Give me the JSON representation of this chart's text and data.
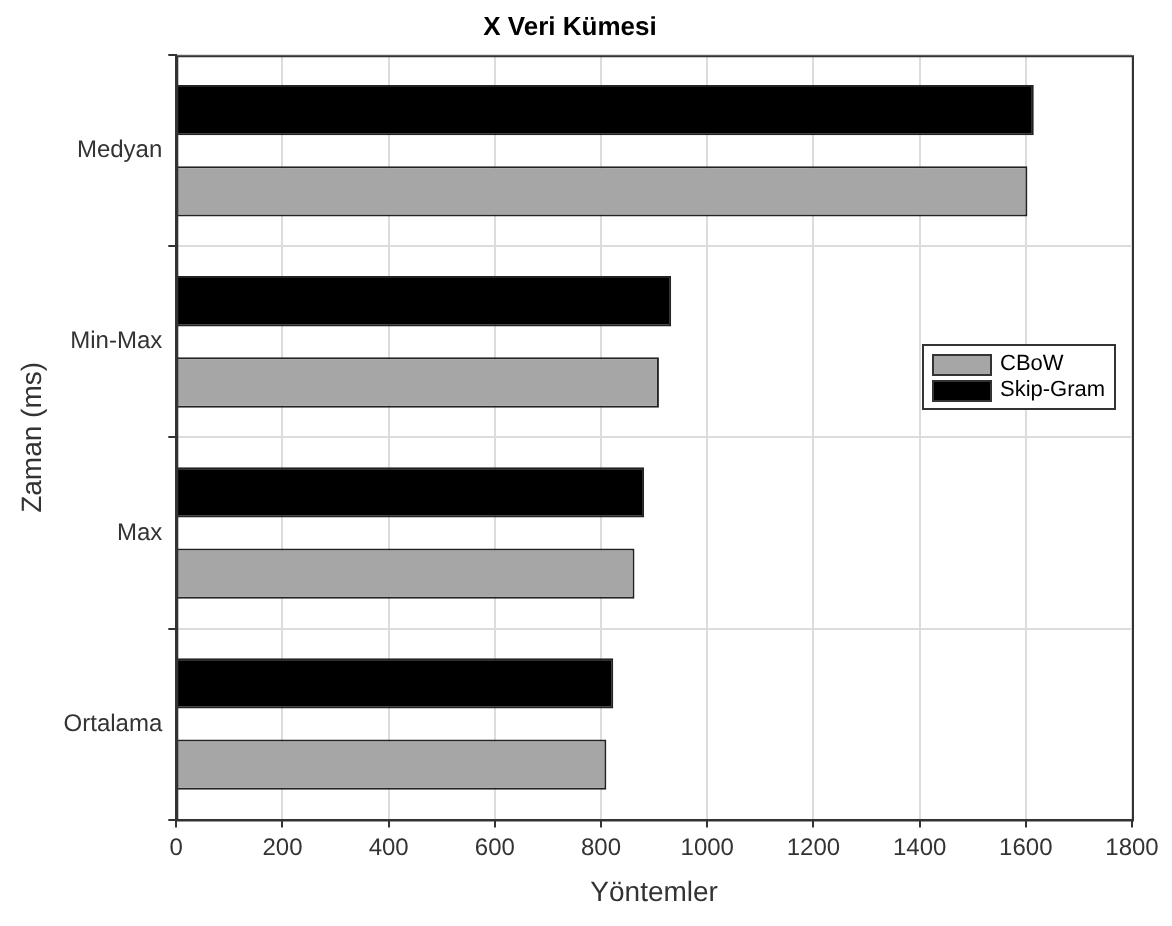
{
  "chart_data": {
    "type": "bar",
    "orientation": "horizontal",
    "title": "X Veri Kümesi",
    "xlabel": "Yöntemler",
    "ylabel": "Zaman (ms)",
    "categories": [
      "Medyan",
      "Min-Max",
      "Max",
      "Ortalama"
    ],
    "series": [
      {
        "name": "CBoW",
        "color": "#a6a6a6",
        "values": [
          1603,
          909,
          863,
          810
        ]
      },
      {
        "name": "Skip-Gram",
        "color": "#000000",
        "values": [
          1615,
          932,
          881,
          823
        ]
      }
    ],
    "xlim": [
      0,
      1800
    ],
    "xticks": [
      0,
      200,
      400,
      600,
      800,
      1000,
      1200,
      1400,
      1600,
      1800
    ],
    "grid": true,
    "legend": "right"
  }
}
